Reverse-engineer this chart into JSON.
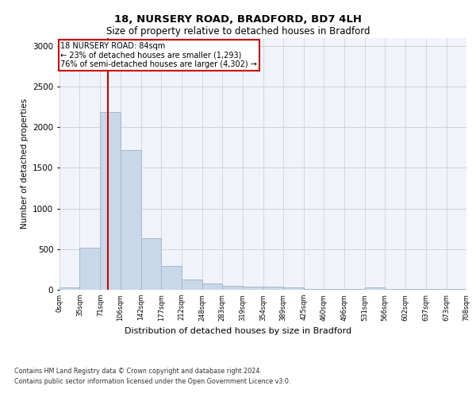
{
  "title1": "18, NURSERY ROAD, BRADFORD, BD7 4LH",
  "title2": "Size of property relative to detached houses in Bradford",
  "xlabel": "Distribution of detached houses by size in Bradford",
  "ylabel": "Number of detached properties",
  "bar_color": "#c8d8e8",
  "bar_edge_color": "#a0b8d0",
  "grid_color": "#cccccc",
  "background_color": "#f0f4fa",
  "annotation_box_color": "#cc0000",
  "vline_color": "#cc0000",
  "bins": [
    0,
    35,
    71,
    106,
    142,
    177,
    212,
    248,
    283,
    319,
    354,
    389,
    425,
    460,
    496,
    531,
    566,
    602,
    637,
    673,
    708
  ],
  "bin_labels": [
    "0sqm",
    "35sqm",
    "71sqm",
    "106sqm",
    "142sqm",
    "177sqm",
    "212sqm",
    "248sqm",
    "283sqm",
    "319sqm",
    "354sqm",
    "389sqm",
    "425sqm",
    "460sqm",
    "496sqm",
    "531sqm",
    "566sqm",
    "602sqm",
    "637sqm",
    "673sqm",
    "708sqm"
  ],
  "bar_heights": [
    30,
    520,
    2190,
    1720,
    635,
    295,
    130,
    75,
    45,
    40,
    40,
    30,
    5,
    5,
    5,
    25,
    5,
    5,
    5,
    5
  ],
  "vline_x": 84,
  "annotation_text": "18 NURSERY ROAD: 84sqm\n← 23% of detached houses are smaller (1,293)\n76% of semi-detached houses are larger (4,302) →",
  "ylim": [
    0,
    3100
  ],
  "footnote1": "Contains HM Land Registry data © Crown copyright and database right 2024.",
  "footnote2": "Contains public sector information licensed under the Open Government Licence v3.0."
}
